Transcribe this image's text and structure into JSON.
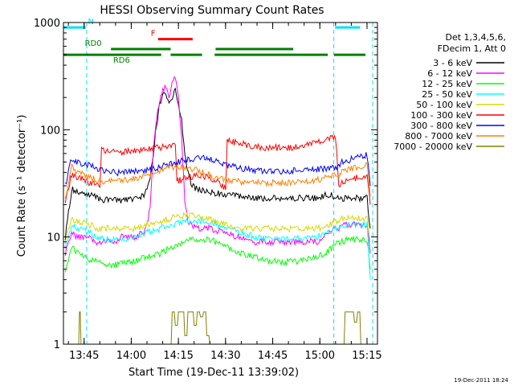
{
  "chart_data": {
    "type": "line",
    "title": "HESSI Observing Summary Count Rates",
    "xlabel": "Start Time (19-Dec-11 13:39:02)",
    "ylabel": "Count Rate (s⁻¹ detector⁻¹)",
    "yscale": "log",
    "xlim": [
      -0.6,
      99.3
    ],
    "ylim": [
      1,
      1000
    ],
    "x_unit": "minutes after 13:39:02",
    "xticks": [
      {
        "x": 5.97,
        "label": "13:45"
      },
      {
        "x": 20.97,
        "label": "14:00"
      },
      {
        "x": 35.97,
        "label": "14:15"
      },
      {
        "x": 50.97,
        "label": "14:30"
      },
      {
        "x": 65.97,
        "label": "14:45"
      },
      {
        "x": 80.97,
        "label": "15:00"
      },
      {
        "x": 95.97,
        "label": "15:15"
      }
    ],
    "yticks": [
      {
        "v": 1,
        "label": "1"
      },
      {
        "v": 10,
        "label": "10"
      },
      {
        "v": 100,
        "label": "100"
      },
      {
        "v": 1000,
        "label": "1000"
      }
    ],
    "legend": {
      "position": "right",
      "header": [
        "Det 1,3,4,5,6,",
        "FDecim 1, Att 0"
      ]
    },
    "series": [
      {
        "name": "3 - 6 keV",
        "color": "#000000",
        "x": [
          0,
          2,
          4,
          8,
          10,
          12,
          18,
          22,
          25,
          26,
          27,
          28,
          29,
          30,
          31,
          32,
          33,
          34,
          35,
          36,
          37,
          38,
          39,
          40,
          42,
          44,
          50,
          55,
          60,
          65,
          70,
          75,
          80,
          82,
          84,
          86,
          87,
          88,
          90,
          93,
          96,
          97
        ],
        "y": [
          10,
          28,
          26,
          25,
          23,
          22,
          22,
          23,
          24,
          28,
          38,
          60,
          110,
          170,
          210,
          220,
          180,
          200,
          240,
          160,
          120,
          60,
          40,
          30,
          28,
          27,
          25,
          24,
          23,
          23,
          23,
          23,
          23,
          24,
          25,
          23,
          23,
          23,
          23,
          23,
          23,
          12
        ]
      },
      {
        "name": "6 - 12 keV",
        "color": "#ff00ff",
        "x": [
          0,
          2,
          4,
          8,
          10,
          12,
          16,
          18,
          22,
          25,
          26,
          27,
          28,
          29,
          30,
          31,
          32,
          33,
          34,
          35,
          36,
          37,
          38,
          39,
          40,
          42,
          46,
          50,
          55,
          60,
          65,
          70,
          75,
          80,
          82,
          84,
          86,
          87,
          88,
          90,
          93,
          96,
          97
        ],
        "y": [
          7,
          11,
          10,
          10,
          9,
          9,
          9,
          10,
          10,
          11,
          13,
          20,
          60,
          130,
          180,
          240,
          250,
          200,
          280,
          320,
          200,
          80,
          22,
          14,
          13,
          12,
          12,
          11,
          10,
          9,
          9,
          9,
          9,
          9,
          10,
          11,
          12,
          12,
          13,
          13,
          13,
          13,
          7
        ]
      },
      {
        "name": "12 - 25 keV",
        "color": "#00ff00",
        "x": [
          0,
          2,
          4,
          8,
          10,
          12,
          16,
          22,
          26,
          30,
          34,
          38,
          40,
          44,
          48,
          52,
          56,
          60,
          64,
          70,
          75,
          80,
          84,
          86,
          87,
          88,
          90,
          93,
          96,
          97
        ],
        "y": [
          5,
          8,
          7,
          6,
          6,
          5.5,
          5.5,
          6,
          6.5,
          7,
          8,
          9,
          9.5,
          9.5,
          9,
          8,
          7,
          6.5,
          6,
          5.8,
          6,
          6.5,
          7.5,
          8.5,
          9,
          9,
          9.5,
          9.5,
          9.5,
          5
        ]
      },
      {
        "name": "25 - 50 keV",
        "color": "#00ffff",
        "x": [
          0,
          2,
          4,
          8,
          10,
          12,
          16,
          22,
          26,
          30,
          34,
          38,
          40,
          44,
          48,
          52,
          56,
          60,
          64,
          70,
          75,
          80,
          84,
          86,
          87,
          88,
          90,
          93,
          96,
          97
        ],
        "y": [
          8,
          13,
          12,
          11,
          10,
          9.5,
          9.5,
          10,
          11,
          12,
          13,
          14,
          14,
          14,
          13,
          12,
          11,
          10,
          9.5,
          9.5,
          9.8,
          10,
          11,
          12,
          12,
          13,
          13,
          13,
          13,
          4
        ]
      },
      {
        "name": "50 - 100 keV",
        "color": "#d8d800",
        "x": [
          0,
          2,
          4,
          8,
          10,
          12,
          16,
          22,
          26,
          30,
          34,
          38,
          40,
          44,
          48,
          52,
          56,
          60,
          64,
          70,
          75,
          80,
          84,
          86,
          87,
          88,
          90,
          93,
          96,
          97
        ],
        "y": [
          9,
          15,
          14,
          13,
          12,
          12,
          12,
          12,
          13,
          14,
          15,
          16,
          16,
          15,
          14,
          13,
          12,
          12,
          12,
          12,
          12,
          12,
          13,
          14,
          14,
          15,
          15,
          15,
          15,
          9
        ]
      },
      {
        "name": "100 - 300 keV",
        "color": "#ff0000",
        "x": [
          0,
          2,
          4,
          8,
          10,
          11,
          11.5,
          14,
          18,
          22,
          26,
          30,
          34,
          35,
          35.5,
          38,
          42,
          46,
          48,
          50,
          51,
          51.5,
          55,
          60,
          65,
          70,
          75,
          80,
          84,
          86,
          87,
          88,
          90,
          93,
          96,
          97
        ],
        "y": [
          22,
          38,
          36,
          32,
          30,
          29,
          65,
          63,
          62,
          64,
          66,
          68,
          72,
          75,
          33,
          35,
          38,
          36,
          33,
          30,
          28,
          80,
          75,
          70,
          68,
          68,
          70,
          75,
          82,
          85,
          30,
          32,
          34,
          36,
          38,
          20
        ]
      },
      {
        "name": "300 - 800 keV",
        "color": "#0000ff",
        "x": [
          0,
          2,
          4,
          8,
          10,
          12,
          16,
          20,
          26,
          30,
          34,
          38,
          42,
          46,
          50,
          55,
          60,
          65,
          70,
          75,
          80,
          84,
          86,
          87,
          88,
          90,
          93,
          96,
          97
        ],
        "y": [
          30,
          55,
          50,
          46,
          43,
          41,
          40,
          40,
          42,
          45,
          48,
          52,
          55,
          53,
          48,
          44,
          42,
          41,
          41,
          42,
          43,
          44,
          45,
          45,
          50,
          52,
          55,
          58,
          30
        ]
      },
      {
        "name": "800 - 7000 keV",
        "color": "#ff8000",
        "x": [
          0,
          2,
          4,
          8,
          10,
          12,
          16,
          20,
          26,
          30,
          34,
          38,
          42,
          46,
          50,
          55,
          60,
          65,
          70,
          75,
          80,
          84,
          86,
          87,
          88,
          90,
          93,
          96,
          97
        ],
        "y": [
          24,
          45,
          40,
          36,
          34,
          33,
          33,
          34,
          37,
          42,
          45,
          45,
          42,
          38,
          35,
          33,
          32,
          32,
          32,
          33,
          34,
          36,
          38,
          38,
          40,
          42,
          45,
          48,
          24
        ]
      },
      {
        "name": "7000 - 20000 keV",
        "color": "#808000",
        "x": [
          4,
          4.5,
          5,
          5.5,
          6,
          10,
          12,
          33,
          34,
          35,
          36,
          37,
          38,
          39,
          40,
          41,
          42,
          43,
          44,
          45,
          46,
          48,
          52,
          88,
          89,
          90,
          91,
          92,
          93,
          94,
          97
        ],
        "y": [
          1,
          2,
          1,
          1,
          1,
          1,
          1,
          1,
          2,
          1.5,
          2,
          2,
          1.2,
          2,
          2,
          1.5,
          2,
          1.8,
          2,
          1.2,
          1,
          1,
          1,
          1,
          2,
          2,
          2,
          1.6,
          2,
          1,
          1
        ]
      }
    ],
    "flags": [
      {
        "label": "N",
        "color": "#00e0ff",
        "segments": [
          [
            -0.6,
            6.5
          ],
          [
            85.8,
            93.8
          ]
        ],
        "y": 900,
        "label_x": 7.2
      },
      {
        "label": "F",
        "color": "#ff0000",
        "segments": [
          [
            29.5,
            40.5
          ]
        ],
        "y": 700,
        "label_x": 27.2
      },
      {
        "label": "RD0",
        "color": "#008000",
        "segments": [
          [
            14.5,
            33.5
          ],
          [
            47.8,
            72.5
          ]
        ],
        "y": 565,
        "label_x": 6.2
      },
      {
        "label": "RD6",
        "color": "#008000",
        "segments": [
          [
            -0.6,
            5.5
          ],
          [
            5.5,
            30.5
          ],
          [
            33.5,
            43.5
          ],
          [
            47.5,
            83.5
          ],
          [
            85.5,
            95.5
          ]
        ],
        "y": 500,
        "label_x": 15.2
      }
    ],
    "vlines": [
      {
        "x": 6.8,
        "color": "#00e0ff",
        "style": "dashed"
      },
      {
        "x": 85.4,
        "color": "#00e0ff",
        "style": "dashed"
      },
      {
        "x": 97.8,
        "color": "#00e0ff",
        "style": "dashed"
      }
    ],
    "footer_date": "19-Dec-2011 18:24"
  }
}
